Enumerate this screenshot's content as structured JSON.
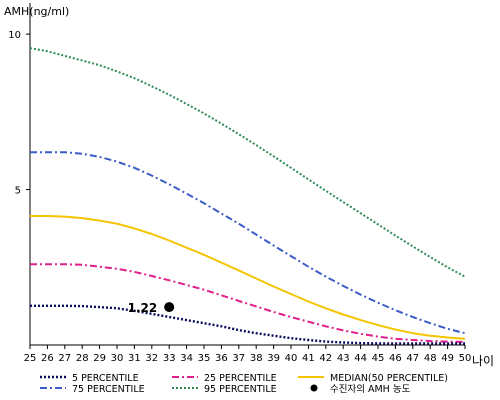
{
  "chart_data": {
    "type": "line",
    "ylabel": "AMH(ng/ml)",
    "xlabel": "나이",
    "x": [
      25,
      26,
      27,
      28,
      29,
      30,
      31,
      32,
      33,
      34,
      35,
      36,
      37,
      38,
      39,
      40,
      41,
      42,
      43,
      44,
      45,
      46,
      47,
      48,
      49,
      50
    ],
    "xlim": [
      25,
      50
    ],
    "ylim": [
      0,
      11
    ],
    "yticks": [
      5,
      10
    ],
    "grid": false,
    "legend_position": "bottom",
    "series": [
      {
        "name": "5 PERCENTILE",
        "color": "#0a0a60",
        "style": "dotted",
        "width": 2.4,
        "values": [
          1.26,
          1.26,
          1.26,
          1.25,
          1.22,
          1.18,
          1.1,
          1.0,
          0.9,
          0.8,
          0.7,
          0.6,
          0.48,
          0.38,
          0.3,
          0.22,
          0.16,
          0.11,
          0.08,
          0.06,
          0.05,
          0.05,
          0.05,
          0.05,
          0.05,
          0.05
        ]
      },
      {
        "name": "25 PERCENTILE",
        "color": "#e01e8c",
        "style": "dashdot",
        "width": 2,
        "values": [
          2.6,
          2.6,
          2.6,
          2.58,
          2.52,
          2.45,
          2.35,
          2.22,
          2.08,
          1.93,
          1.78,
          1.6,
          1.42,
          1.24,
          1.06,
          0.9,
          0.75,
          0.6,
          0.47,
          0.36,
          0.27,
          0.2,
          0.16,
          0.13,
          0.11,
          0.1
        ]
      },
      {
        "name": "MEDIAN(50 PERCENTILE)",
        "color": "#f5c400",
        "style": "solid",
        "width": 2,
        "values": [
          4.15,
          4.15,
          4.13,
          4.08,
          4.0,
          3.9,
          3.75,
          3.57,
          3.36,
          3.13,
          2.9,
          2.65,
          2.4,
          2.14,
          1.88,
          1.64,
          1.4,
          1.18,
          0.98,
          0.8,
          0.64,
          0.5,
          0.38,
          0.3,
          0.24,
          0.2
        ]
      },
      {
        "name": "75 PERCENTILE",
        "color": "#3a5cc8",
        "style": "dashdot",
        "width": 2,
        "values": [
          6.2,
          6.2,
          6.2,
          6.15,
          6.05,
          5.9,
          5.7,
          5.45,
          5.17,
          4.87,
          4.56,
          4.23,
          3.9,
          3.55,
          3.2,
          2.86,
          2.52,
          2.2,
          1.9,
          1.62,
          1.36,
          1.12,
          0.9,
          0.7,
          0.52,
          0.38
        ]
      },
      {
        "name": "95 PERCENTILE",
        "color": "#2e8b57",
        "style": "dotted",
        "width": 2,
        "values": [
          9.55,
          9.45,
          9.3,
          9.15,
          9.0,
          8.8,
          8.58,
          8.32,
          8.05,
          7.75,
          7.45,
          7.12,
          6.78,
          6.43,
          6.07,
          5.7,
          5.33,
          4.96,
          4.6,
          4.24,
          3.88,
          3.52,
          3.17,
          2.83,
          2.5,
          2.2
        ]
      }
    ],
    "marker": {
      "name": "수진자의 AMH 농도",
      "x": 33,
      "y": 1.22,
      "label": "1.22",
      "color": "#000000"
    }
  }
}
